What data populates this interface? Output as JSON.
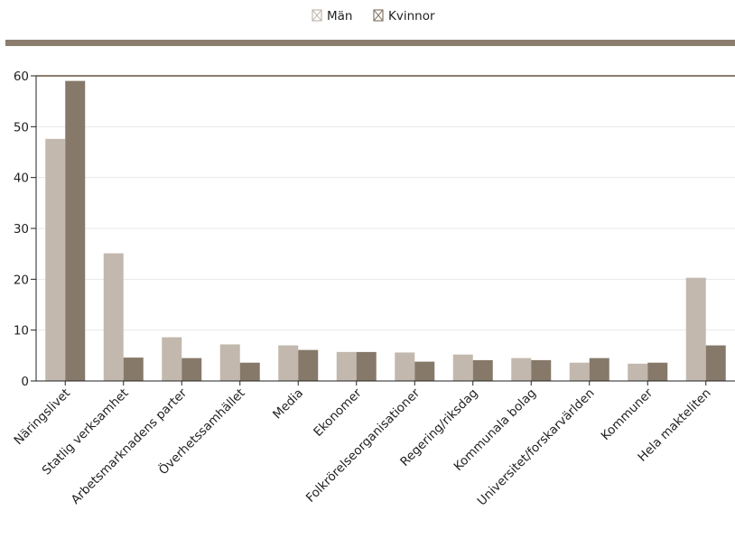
{
  "chart_data": {
    "type": "bar",
    "title": "",
    "xlabel": "",
    "ylabel": "",
    "ylim": [
      0,
      60
    ],
    "yticks": [
      0,
      10,
      20,
      30,
      40,
      50,
      60
    ],
    "grid": true,
    "legend_position": "top-center",
    "categories": [
      "Näringslivet",
      "Statlig verksamhet",
      "Arbetsmarknadens parter",
      "Överhetssamhället",
      "Media",
      "Ekonomer",
      "Folkrörelseorganisationer",
      "Regering/riksdag",
      "Kommunala bolag",
      "Universitet/forskarvärlden",
      "Kommuner",
      "Hela makteliten"
    ],
    "series": [
      {
        "name": "Män",
        "color": "#c2b8ad",
        "values": [
          47.6,
          25.1,
          8.6,
          7.2,
          7.0,
          5.7,
          5.6,
          5.2,
          4.5,
          3.6,
          3.4,
          20.3
        ]
      },
      {
        "name": "Kvinnor",
        "color": "#87796a",
        "values": [
          59.0,
          4.6,
          4.5,
          3.6,
          6.1,
          5.7,
          3.8,
          4.1,
          4.1,
          4.5,
          3.6,
          7.0
        ]
      }
    ]
  }
}
